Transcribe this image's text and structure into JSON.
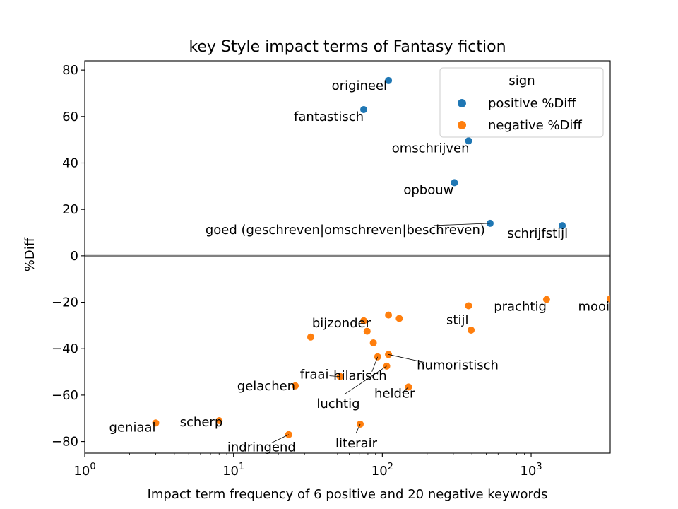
{
  "chart_data": {
    "type": "scatter",
    "title": "key Style impact terms of Fantasy fiction",
    "xlabel": "Impact term frequency of 6 positive and 20 negative keywords",
    "ylabel": "%Diff",
    "xscale": "log",
    "xlim": [
      1,
      3400
    ],
    "ylim": [
      -85,
      84
    ],
    "x_ticks": [
      {
        "value": 1,
        "base": "10",
        "exp": "0"
      },
      {
        "value": 10,
        "base": "10",
        "exp": "1"
      },
      {
        "value": 100,
        "base": "10",
        "exp": "2"
      },
      {
        "value": 1000,
        "base": "10",
        "exp": "3"
      }
    ],
    "y_ticks": [
      {
        "value": 80,
        "label": "80"
      },
      {
        "value": 60,
        "label": "60"
      },
      {
        "value": 40,
        "label": "40"
      },
      {
        "value": 20,
        "label": "20"
      },
      {
        "value": 0,
        "label": "0"
      },
      {
        "value": -20,
        "label": "−20"
      },
      {
        "value": -40,
        "label": "−40"
      },
      {
        "value": -60,
        "label": "−60"
      },
      {
        "value": -80,
        "label": "−80"
      }
    ],
    "zero_line": true,
    "grid": false,
    "legend": {
      "title": "sign",
      "position": "top-right"
    },
    "series": [
      {
        "name": "positive %Diff",
        "color": "#1f77b4",
        "points": [
          {
            "x": 110,
            "y": 75.5,
            "label": "origineel"
          },
          {
            "x": 75,
            "y": 63,
            "label": "fantastisch"
          },
          {
            "x": 380,
            "y": 49.5,
            "label": "omschrijven"
          },
          {
            "x": 305,
            "y": 31.5,
            "label": "opbouw"
          },
          {
            "x": 530,
            "y": 14,
            "label": "goed (geschreven|omschreven|beschreven)"
          },
          {
            "x": 1620,
            "y": 13,
            "label": "schrijfstijl"
          }
        ]
      },
      {
        "name": "negative %Diff",
        "color": "#ff7f0e",
        "points": [
          {
            "x": 3400,
            "y": -18.5,
            "label": "mooi"
          },
          {
            "x": 1270,
            "y": -18.8,
            "label": "prachtig"
          },
          {
            "x": 380,
            "y": -21.5,
            "label": "stijl"
          },
          {
            "x": 395,
            "y": -32,
            "label": ""
          },
          {
            "x": 110,
            "y": -25.5,
            "label": ""
          },
          {
            "x": 130,
            "y": -27,
            "label": ""
          },
          {
            "x": 75,
            "y": -28,
            "label": "bijzonder"
          },
          {
            "x": 79,
            "y": -32.5,
            "label": ""
          },
          {
            "x": 87,
            "y": -37.5,
            "label": ""
          },
          {
            "x": 33,
            "y": -35,
            "label": ""
          },
          {
            "x": 110,
            "y": -42.5,
            "label": "humoristisch"
          },
          {
            "x": 93,
            "y": -43.5,
            "label": "hilarisch"
          },
          {
            "x": 107,
            "y": -47.5,
            "label": "luchtig"
          },
          {
            "x": 52,
            "y": -52,
            "label": "fraai"
          },
          {
            "x": 26,
            "y": -56,
            "label": "gelachen"
          },
          {
            "x": 150,
            "y": -56.5,
            "label": "helder"
          },
          {
            "x": 3,
            "y": -72,
            "label": "geniaal"
          },
          {
            "x": 8,
            "y": -71,
            "label": "scherp"
          },
          {
            "x": 71,
            "y": -72.5,
            "label": "literair"
          },
          {
            "x": 23.5,
            "y": -77,
            "label": "indringend"
          }
        ]
      }
    ]
  }
}
